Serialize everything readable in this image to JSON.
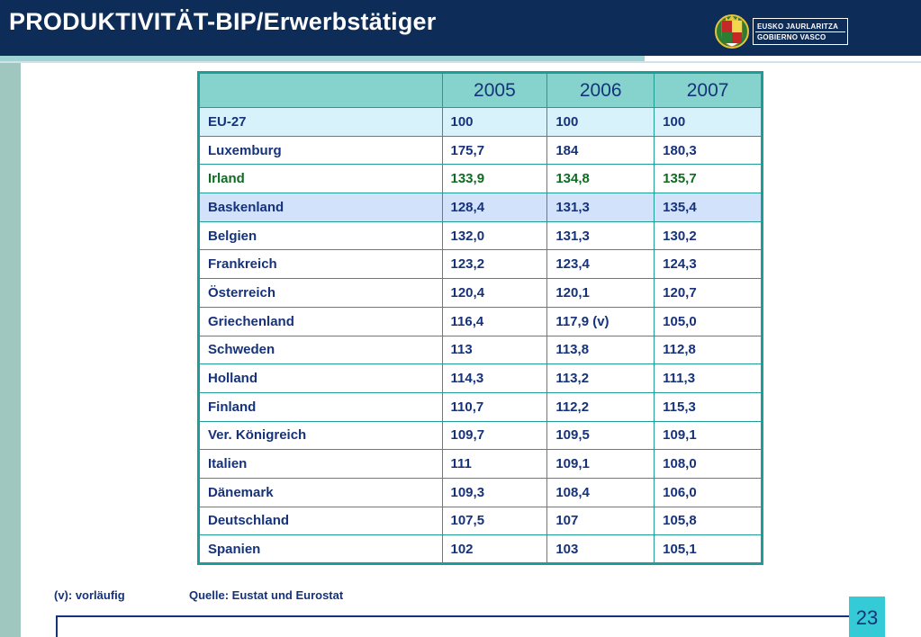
{
  "header": {
    "title": "PRODUKTIVITÄT-BIP/Erwerbstätiger",
    "logo": {
      "line1": "EUSKO JAURLARITZA",
      "line2": "GOBIERNO VASCO"
    }
  },
  "table": {
    "columns": [
      "",
      "2005",
      "2006",
      "2007"
    ],
    "rows": [
      [
        "EU-27",
        "100",
        "100",
        "100"
      ],
      [
        "Luxemburg",
        "175,7",
        "184",
        "180,3"
      ],
      [
        "Irland",
        "133,9",
        "134,8",
        "135,7"
      ],
      [
        "Baskenland",
        "128,4",
        "131,3",
        "135,4"
      ],
      [
        "Belgien",
        "132,0",
        "131,3",
        "130,2"
      ],
      [
        "Frankreich",
        "123,2",
        "123,4",
        "124,3"
      ],
      [
        "Österreich",
        "120,4",
        "120,1",
        "120,7"
      ],
      [
        "Griechenland",
        "116,4",
        "117,9 (v)",
        "105,0"
      ],
      [
        "Schweden",
        "113",
        "113,8",
        "112,8"
      ],
      [
        "Holland",
        "114,3",
        "113,2",
        "111,3"
      ],
      [
        "Finland",
        "110,7",
        "112,2",
        "115,3"
      ],
      [
        "Ver. Königreich",
        "109,7",
        "109,5",
        "109,1"
      ],
      [
        "Italien",
        "111",
        "109,1",
        "108,0"
      ],
      [
        "Dänemark",
        "109,3",
        "108,4",
        "106,0"
      ],
      [
        "Deutschland",
        "107,5",
        "107",
        "105,8"
      ],
      [
        "Spanien",
        "102",
        "103",
        "105,1"
      ]
    ]
  },
  "footer": {
    "note": "(v): vorläufig",
    "source": "Quelle: Eustat und Eurostat",
    "page_number": "23"
  },
  "colors": {
    "header_bg": "#0d2c58",
    "table_border": "#1f9c96",
    "header_cell_bg": "#86d3cd",
    "text_blue": "#16327a",
    "text_green": "#0f6b22",
    "highlight_row": "#d2e2fb",
    "eu_row": "#d7f2fb",
    "page_badge": "#35cbd6"
  },
  "icons": {
    "logo": "basque-coat-of-arms-icon"
  }
}
